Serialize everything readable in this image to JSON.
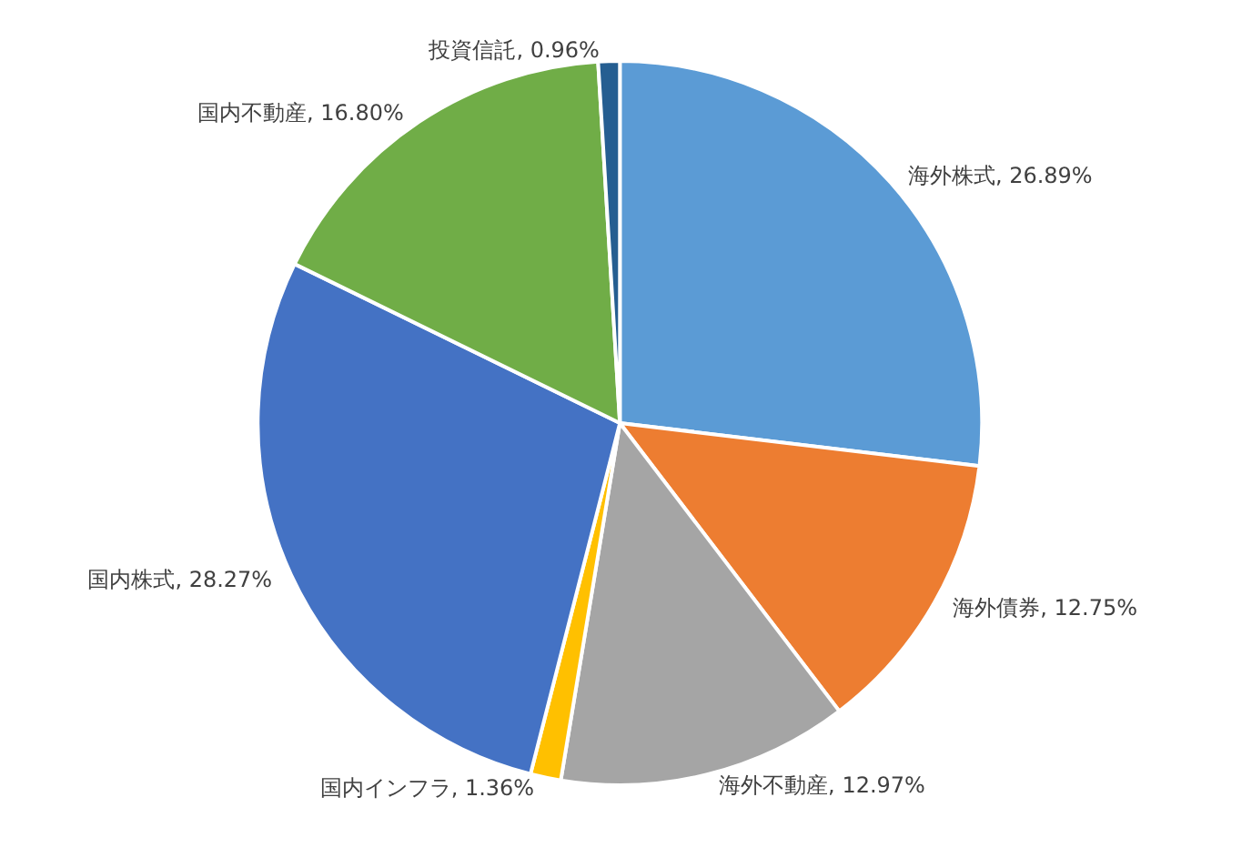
{
  "chart_data": {
    "type": "pie",
    "categories": [
      "海外株式",
      "海外債券",
      "海外不動産",
      "国内インフラ",
      "国内株式",
      "国内不動産",
      "投資信託"
    ],
    "values": [
      26.89,
      12.75,
      12.97,
      1.36,
      28.27,
      16.8,
      0.96
    ],
    "colors": [
      "#5b9bd5",
      "#ed7d31",
      "#a5a5a5",
      "#ffc000",
      "#4472c4",
      "#70ad47",
      "#255e91"
    ],
    "value_labels": [
      "26.89%",
      "12.75%",
      "12.97%",
      "1.36%",
      "28.27%",
      "16.80%",
      "0.96%"
    ],
    "legend": false
  }
}
